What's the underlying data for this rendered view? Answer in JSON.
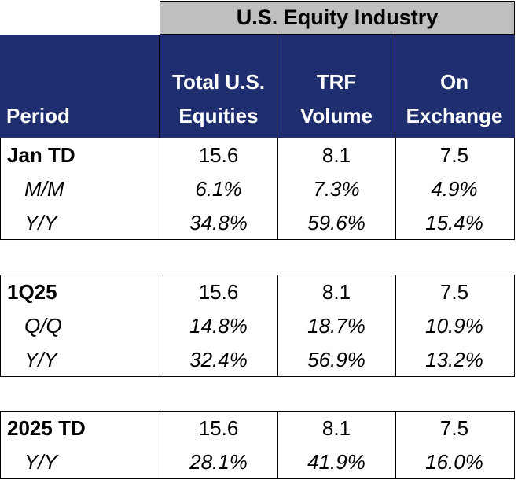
{
  "banner": "U.S. Equity Industry",
  "headers": {
    "period": "Period",
    "col1": [
      "Total U.S.",
      "Equities"
    ],
    "col2": [
      "TRF",
      "Volume"
    ],
    "col3": [
      "On",
      "Exchange"
    ]
  },
  "groups": [
    {
      "rows": [
        {
          "label": "Jan TD",
          "values": [
            "15.6",
            "8.1",
            "7.5"
          ]
        },
        {
          "label": "M/M",
          "values": [
            "6.1%",
            "7.3%",
            "4.9%"
          ]
        },
        {
          "label": "Y/Y",
          "values": [
            "34.8%",
            "59.6%",
            "15.4%"
          ]
        }
      ]
    },
    {
      "rows": [
        {
          "label": "1Q25",
          "values": [
            "15.6",
            "8.1",
            "7.5"
          ]
        },
        {
          "label": "Q/Q",
          "values": [
            "14.8%",
            "18.7%",
            "10.9%"
          ]
        },
        {
          "label": "Y/Y",
          "values": [
            "32.4%",
            "56.9%",
            "13.2%"
          ]
        }
      ]
    },
    {
      "rows": [
        {
          "label": "2025 TD",
          "values": [
            "15.6",
            "8.1",
            "7.5"
          ]
        },
        {
          "label": "Y/Y",
          "values": [
            "28.1%",
            "41.9%",
            "16.0%"
          ]
        }
      ]
    }
  ]
}
